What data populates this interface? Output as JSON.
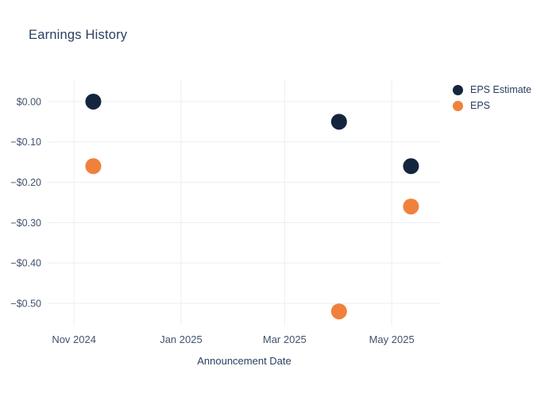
{
  "page": {
    "background_color": "#ffffff",
    "text_color": "#2a3f5f",
    "tick_text_color": "#42526e",
    "gridline_color": "#e9eef6"
  },
  "chart_data": {
    "type": "scatter",
    "title": "Earnings History",
    "xlabel": "Announcement Date",
    "ylabel": "",
    "grid": true,
    "legend_position": "right",
    "x_tick_labels": [
      "Nov 2024",
      "Jan 2025",
      "Mar 2025",
      "May 2025"
    ],
    "x_tick_dates": [
      "2024-11-01",
      "2025-01-01",
      "2025-03-01",
      "2025-05-01"
    ],
    "x_range": [
      "2024-10-17",
      "2025-05-29"
    ],
    "y_tick_labels": [
      "$0.00",
      "−$0.10",
      "−$0.20",
      "−$0.30",
      "−$0.40",
      "−$0.50"
    ],
    "y_ticks": [
      0,
      -0.1,
      -0.2,
      -0.3,
      -0.4,
      -0.5
    ],
    "y_range": [
      -0.555,
      0.055
    ],
    "x": [
      "2024-11-12",
      "2025-04-01",
      "2025-05-12"
    ],
    "series": [
      {
        "name": "EPS Estimate",
        "color": "#14263e",
        "values": [
          0.0,
          -0.05,
          -0.16
        ]
      },
      {
        "name": "EPS",
        "color": "#f0813c",
        "values": [
          -0.16,
          -0.52,
          -0.26
        ]
      }
    ],
    "marker_diameter_px": 20
  }
}
